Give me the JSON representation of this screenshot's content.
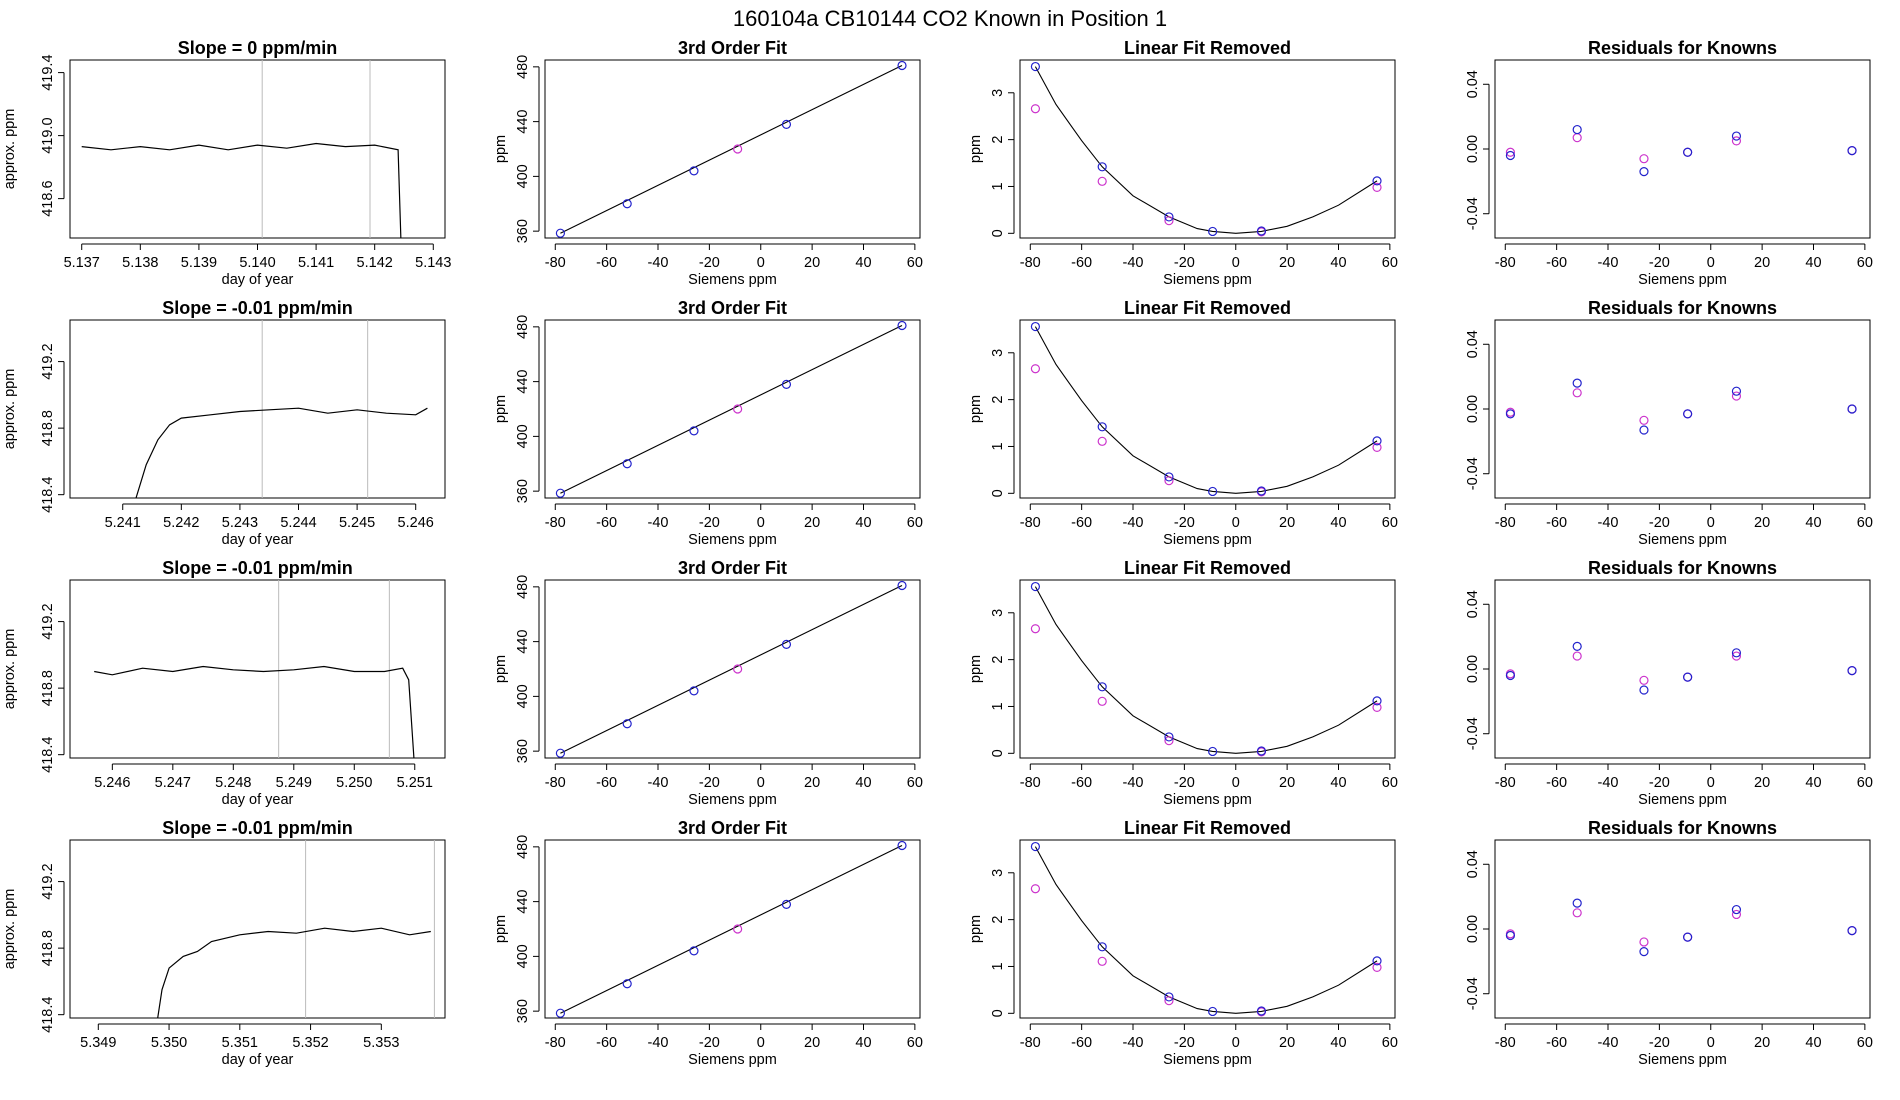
{
  "page_title": "160104a      CB10144    CO2 Known in Position  1",
  "chart_data": [
    {
      "type": "line",
      "title": "Slope =  0  ppm/min",
      "xlabel": "day of year",
      "ylabel": "approx. ppm",
      "xlim": [
        5.1368,
        5.1432
      ],
      "ylim": [
        418.35,
        419.48
      ],
      "xticks": [
        "5.137",
        "5.138",
        "5.139",
        "5.140",
        "5.141",
        "5.142",
        "5.143"
      ],
      "yticks": [
        "418.6",
        "419.0",
        "419.4"
      ],
      "vlines": [
        5.14008,
        5.14192
      ],
      "series": [
        {
          "x": [
            5.137,
            5.1375,
            5.138,
            5.1385,
            5.139,
            5.1395,
            5.14,
            5.1405,
            5.141,
            5.1415,
            5.142,
            5.1424,
            5.14245
          ],
          "values": [
            418.93,
            418.91,
            418.93,
            418.91,
            418.94,
            418.91,
            418.94,
            418.92,
            418.95,
            418.93,
            418.94,
            418.91,
            418.3
          ]
        }
      ]
    },
    {
      "type": "scatter",
      "title": "3rd Order Fit",
      "xlabel": "Siemens ppm",
      "ylabel": "ppm",
      "xlim": [
        -84,
        62
      ],
      "ylim": [
        355,
        485
      ],
      "xticks": [
        "-80",
        "-60",
        "-40",
        "-20",
        "0",
        "20",
        "40",
        "60"
      ],
      "yticks": [
        "360",
        "400",
        "440",
        "480"
      ],
      "fit_line": {
        "x": [
          -78,
          55
        ],
        "values": [
          358.5,
          481
        ]
      },
      "points_blue": {
        "x": [
          -78,
          -52,
          -26,
          10,
          55
        ],
        "values": [
          358.5,
          380,
          404,
          438,
          481
        ]
      },
      "points_magenta": {
        "x": [
          -9
        ],
        "values": [
          420
        ]
      }
    },
    {
      "type": "scatter",
      "title": "Linear Fit Removed",
      "xlabel": "Siemens ppm",
      "ylabel": "ppm",
      "xlim": [
        -84,
        62
      ],
      "ylim": [
        -0.1,
        3.7
      ],
      "xticks": [
        "-80",
        "-60",
        "-40",
        "-20",
        "0",
        "20",
        "40",
        "60"
      ],
      "yticks": [
        "0",
        "1",
        "2",
        "3"
      ],
      "fit_curve": {
        "x": [
          -78,
          -70,
          -60,
          -52,
          -40,
          -26,
          -15,
          -9,
          0,
          10,
          20,
          30,
          40,
          55
        ],
        "values": [
          3.56,
          2.75,
          1.98,
          1.42,
          0.8,
          0.35,
          0.1,
          0.04,
          0.0,
          0.04,
          0.15,
          0.35,
          0.6,
          1.12
        ]
      },
      "points_blue": {
        "x": [
          -78,
          -52,
          -26,
          -9,
          10,
          55
        ],
        "values": [
          3.56,
          1.42,
          0.35,
          0.04,
          0.05,
          1.12
        ]
      },
      "points_magenta": {
        "x": [
          -78,
          -52,
          -26,
          10,
          55
        ],
        "values": [
          2.66,
          1.11,
          0.27,
          0.03,
          0.98
        ]
      }
    },
    {
      "type": "scatter",
      "title": "Residuals for Knowns",
      "xlabel": "Siemens ppm",
      "ylabel": "",
      "xlim": [
        -84,
        62
      ],
      "ylim": [
        -0.055,
        0.055
      ],
      "xticks": [
        "-80",
        "-60",
        "-40",
        "-20",
        "0",
        "20",
        "40",
        "60"
      ],
      "yticks": [
        "-0.04",
        "0.00",
        "0.04"
      ],
      "points_blue": {
        "x": [
          -78,
          -52,
          -26,
          -9,
          10,
          55
        ],
        "values": [
          -0.004,
          0.012,
          -0.014,
          -0.002,
          0.008,
          -0.001
        ]
      },
      "points_magenta": {
        "x": [
          -78,
          -52,
          -26,
          -9,
          10,
          55
        ],
        "values": [
          -0.002,
          0.007,
          -0.006,
          -0.002,
          0.005,
          -0.001
        ]
      }
    },
    {
      "type": "line",
      "title": "Slope =  -0.01  ppm/min",
      "xlabel": "day of year",
      "ylabel": "approx. ppm",
      "xlim": [
        5.2401,
        5.2465
      ],
      "ylim": [
        418.38,
        419.45
      ],
      "xticks": [
        "5.241",
        "5.242",
        "5.243",
        "5.244",
        "5.245",
        "5.246"
      ],
      "yticks": [
        "418.4",
        "418.8",
        "419.2"
      ],
      "vlines": [
        5.24338,
        5.24518
      ],
      "series": [
        {
          "x": [
            5.2412,
            5.2414,
            5.2416,
            5.2418,
            5.242,
            5.2425,
            5.243,
            5.2435,
            5.244,
            5.2445,
            5.245,
            5.2455,
            5.246,
            5.2462
          ],
          "values": [
            418.35,
            418.58,
            418.73,
            418.82,
            418.86,
            418.88,
            418.9,
            418.91,
            418.92,
            418.89,
            418.91,
            418.89,
            418.88,
            418.92
          ]
        }
      ]
    },
    {
      "type": "scatter",
      "title": "3rd Order Fit",
      "xlabel": "Siemens ppm",
      "ylabel": "ppm",
      "xlim": [
        -84,
        62
      ],
      "ylim": [
        355,
        485
      ],
      "xticks": [
        "-80",
        "-60",
        "-40",
        "-20",
        "0",
        "20",
        "40",
        "60"
      ],
      "yticks": [
        "360",
        "400",
        "440",
        "480"
      ],
      "fit_line": {
        "x": [
          -78,
          55
        ],
        "values": [
          358.5,
          481
        ]
      },
      "points_blue": {
        "x": [
          -78,
          -52,
          -26,
          10,
          55
        ],
        "values": [
          358.5,
          380,
          404,
          438,
          481
        ]
      },
      "points_magenta": {
        "x": [
          -9
        ],
        "values": [
          420
        ]
      }
    },
    {
      "type": "scatter",
      "title": "Linear Fit Removed",
      "xlabel": "Siemens ppm",
      "ylabel": "ppm",
      "xlim": [
        -84,
        62
      ],
      "ylim": [
        -0.1,
        3.7
      ],
      "xticks": [
        "-80",
        "-60",
        "-40",
        "-20",
        "0",
        "20",
        "40",
        "60"
      ],
      "yticks": [
        "0",
        "1",
        "2",
        "3"
      ],
      "fit_curve": {
        "x": [
          -78,
          -70,
          -60,
          -52,
          -40,
          -26,
          -15,
          -9,
          0,
          10,
          20,
          30,
          40,
          55
        ],
        "values": [
          3.56,
          2.75,
          1.98,
          1.42,
          0.8,
          0.35,
          0.1,
          0.04,
          0.0,
          0.04,
          0.15,
          0.35,
          0.6,
          1.12
        ]
      },
      "points_blue": {
        "x": [
          -78,
          -52,
          -26,
          -9,
          10,
          55
        ],
        "values": [
          3.56,
          1.42,
          0.35,
          0.04,
          0.05,
          1.12
        ]
      },
      "points_magenta": {
        "x": [
          -78,
          -52,
          -26,
          10,
          55
        ],
        "values": [
          2.66,
          1.11,
          0.27,
          0.03,
          0.98
        ]
      }
    },
    {
      "type": "scatter",
      "title": "Residuals for Knowns",
      "xlabel": "Siemens ppm",
      "ylabel": "",
      "xlim": [
        -84,
        62
      ],
      "ylim": [
        -0.055,
        0.055
      ],
      "xticks": [
        "-80",
        "-60",
        "-40",
        "-20",
        "0",
        "20",
        "40",
        "60"
      ],
      "yticks": [
        "-0.04",
        "0.00",
        "0.04"
      ],
      "points_blue": {
        "x": [
          -78,
          -52,
          -26,
          -9,
          10,
          55
        ],
        "values": [
          -0.003,
          0.016,
          -0.013,
          -0.003,
          0.011,
          0.0
        ]
      },
      "points_magenta": {
        "x": [
          -78,
          -52,
          -26,
          -9,
          10,
          55
        ],
        "values": [
          -0.002,
          0.01,
          -0.007,
          -0.003,
          0.008,
          0.0
        ]
      }
    },
    {
      "type": "line",
      "title": "Slope =  -0.01  ppm/min",
      "xlabel": "day of year",
      "ylabel": "approx. ppm",
      "xlim": [
        5.2453,
        5.2515
      ],
      "ylim": [
        418.38,
        419.45
      ],
      "xticks": [
        "5.246",
        "5.247",
        "5.248",
        "5.249",
        "5.250",
        "5.251"
      ],
      "yticks": [
        "418.4",
        "418.8",
        "419.2"
      ],
      "vlines": [
        5.24875,
        5.25058
      ],
      "series": [
        {
          "x": [
            5.2457,
            5.246,
            5.2465,
            5.247,
            5.2475,
            5.248,
            5.2485,
            5.249,
            5.2495,
            5.25,
            5.2505,
            5.2508,
            5.2509,
            5.251
          ],
          "values": [
            418.9,
            418.88,
            418.92,
            418.9,
            418.93,
            418.91,
            418.9,
            418.91,
            418.93,
            418.9,
            418.9,
            418.92,
            418.85,
            418.3
          ]
        }
      ]
    },
    {
      "type": "scatter",
      "title": "3rd Order Fit",
      "xlabel": "Siemens ppm",
      "ylabel": "ppm",
      "xlim": [
        -84,
        62
      ],
      "ylim": [
        355,
        485
      ],
      "xticks": [
        "-80",
        "-60",
        "-40",
        "-20",
        "0",
        "20",
        "40",
        "60"
      ],
      "yticks": [
        "360",
        "400",
        "440",
        "480"
      ],
      "fit_line": {
        "x": [
          -78,
          55
        ],
        "values": [
          358.5,
          481
        ]
      },
      "points_blue": {
        "x": [
          -78,
          -52,
          -26,
          10,
          55
        ],
        "values": [
          358.5,
          380,
          404,
          438,
          481
        ]
      },
      "points_magenta": {
        "x": [
          -9
        ],
        "values": [
          420
        ]
      }
    },
    {
      "type": "scatter",
      "title": "Linear Fit Removed",
      "xlabel": "Siemens ppm",
      "ylabel": "ppm",
      "xlim": [
        -84,
        62
      ],
      "ylim": [
        -0.1,
        3.7
      ],
      "xticks": [
        "-80",
        "-60",
        "-40",
        "-20",
        "0",
        "20",
        "40",
        "60"
      ],
      "yticks": [
        "0",
        "1",
        "2",
        "3"
      ],
      "fit_curve": {
        "x": [
          -78,
          -70,
          -60,
          -52,
          -40,
          -26,
          -15,
          -9,
          0,
          10,
          20,
          30,
          40,
          55
        ],
        "values": [
          3.56,
          2.75,
          1.98,
          1.42,
          0.8,
          0.35,
          0.1,
          0.04,
          0.0,
          0.04,
          0.15,
          0.35,
          0.6,
          1.12
        ]
      },
      "points_blue": {
        "x": [
          -78,
          -52,
          -26,
          -9,
          10,
          55
        ],
        "values": [
          3.56,
          1.42,
          0.35,
          0.04,
          0.05,
          1.12
        ]
      },
      "points_magenta": {
        "x": [
          -78,
          -52,
          -26,
          10,
          55
        ],
        "values": [
          2.66,
          1.11,
          0.27,
          0.03,
          0.98
        ]
      }
    },
    {
      "type": "scatter",
      "title": "Residuals for Knowns",
      "xlabel": "Siemens ppm",
      "ylabel": "",
      "xlim": [
        -84,
        62
      ],
      "ylim": [
        -0.055,
        0.055
      ],
      "xticks": [
        "-80",
        "-60",
        "-40",
        "-20",
        "0",
        "20",
        "40",
        "60"
      ],
      "yticks": [
        "-0.04",
        "0.00",
        "0.04"
      ],
      "points_blue": {
        "x": [
          -78,
          -52,
          -26,
          -9,
          10,
          55
        ],
        "values": [
          -0.004,
          0.014,
          -0.013,
          -0.005,
          0.01,
          -0.001
        ]
      },
      "points_magenta": {
        "x": [
          -78,
          -52,
          -26,
          -9,
          10,
          55
        ],
        "values": [
          -0.003,
          0.008,
          -0.007,
          -0.005,
          0.008,
          -0.001
        ]
      }
    },
    {
      "type": "line",
      "title": "Slope =  -0.01  ppm/min",
      "xlabel": "day of year",
      "ylabel": "approx. ppm",
      "xlim": [
        5.3486,
        5.3539
      ],
      "ylim": [
        418.38,
        419.45
      ],
      "xticks": [
        "5.349",
        "5.350",
        "5.351",
        "5.352",
        "5.353"
      ],
      "yticks": [
        "418.4",
        "418.8",
        "419.2"
      ],
      "vlines": [
        5.35193,
        5.35375
      ],
      "series": [
        {
          "x": [
            5.34984,
            5.3499,
            5.35,
            5.3502,
            5.3504,
            5.3506,
            5.351,
            5.3514,
            5.3518,
            5.3522,
            5.3526,
            5.353,
            5.3534,
            5.3537
          ],
          "values": [
            418.38,
            418.55,
            418.68,
            418.75,
            418.78,
            418.84,
            418.88,
            418.9,
            418.89,
            418.92,
            418.9,
            418.92,
            418.88,
            418.9
          ]
        }
      ]
    },
    {
      "type": "scatter",
      "title": "3rd Order Fit",
      "xlabel": "Siemens ppm",
      "ylabel": "ppm",
      "xlim": [
        -84,
        62
      ],
      "ylim": [
        355,
        485
      ],
      "xticks": [
        "-80",
        "-60",
        "-40",
        "-20",
        "0",
        "20",
        "40",
        "60"
      ],
      "yticks": [
        "360",
        "400",
        "440",
        "480"
      ],
      "fit_line": {
        "x": [
          -78,
          55
        ],
        "values": [
          358.5,
          481
        ]
      },
      "points_blue": {
        "x": [
          -78,
          -52,
          -26,
          10,
          55
        ],
        "values": [
          358.5,
          380,
          404,
          438,
          481
        ]
      },
      "points_magenta": {
        "x": [
          -9
        ],
        "values": [
          420
        ]
      }
    },
    {
      "type": "scatter",
      "title": "Linear Fit Removed",
      "xlabel": "Siemens ppm",
      "ylabel": "ppm",
      "xlim": [
        -84,
        62
      ],
      "ylim": [
        -0.1,
        3.7
      ],
      "xticks": [
        "-80",
        "-60",
        "-40",
        "-20",
        "0",
        "20",
        "40",
        "60"
      ],
      "yticks": [
        "0",
        "1",
        "2",
        "3"
      ],
      "fit_curve": {
        "x": [
          -78,
          -70,
          -60,
          -52,
          -40,
          -26,
          -15,
          -9,
          0,
          10,
          20,
          30,
          40,
          55
        ],
        "values": [
          3.56,
          2.75,
          1.98,
          1.42,
          0.8,
          0.35,
          0.1,
          0.04,
          0.0,
          0.04,
          0.15,
          0.35,
          0.6,
          1.12
        ]
      },
      "points_blue": {
        "x": [
          -78,
          -52,
          -26,
          -9,
          10,
          55
        ],
        "values": [
          3.56,
          1.42,
          0.35,
          0.04,
          0.05,
          1.12
        ]
      },
      "points_magenta": {
        "x": [
          -78,
          -52,
          -26,
          10,
          55
        ],
        "values": [
          2.66,
          1.11,
          0.27,
          0.03,
          0.98
        ]
      }
    },
    {
      "type": "scatter",
      "title": "Residuals for Knowns",
      "xlabel": "Siemens ppm",
      "ylabel": "",
      "xlim": [
        -84,
        62
      ],
      "ylim": [
        -0.055,
        0.055
      ],
      "xticks": [
        "-80",
        "-60",
        "-40",
        "-20",
        "0",
        "20",
        "40",
        "60"
      ],
      "yticks": [
        "-0.04",
        "0.00",
        "0.04"
      ],
      "points_blue": {
        "x": [
          -78,
          -52,
          -26,
          -9,
          10,
          55
        ],
        "values": [
          -0.004,
          0.016,
          -0.014,
          -0.005,
          0.012,
          -0.001
        ]
      },
      "points_magenta": {
        "x": [
          -78,
          -52,
          -26,
          -9,
          10,
          55
        ],
        "values": [
          -0.003,
          0.01,
          -0.008,
          -0.005,
          0.009,
          -0.001
        ]
      }
    }
  ],
  "colors": {
    "line": "#000000",
    "vline": "#bbbbbb",
    "blue": "#2222cc",
    "magenta": "#cc33cc",
    "frame": "#000000"
  }
}
